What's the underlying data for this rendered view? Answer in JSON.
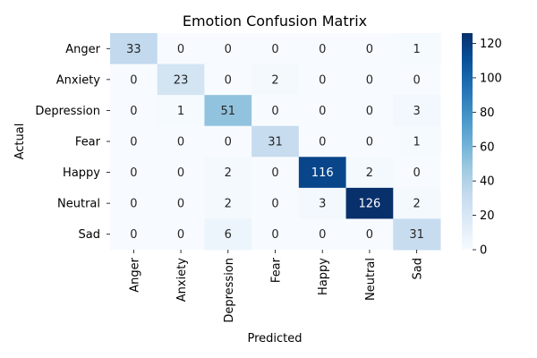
{
  "chart_data": {
    "type": "heatmap",
    "title": "Emotion Confusion Matrix",
    "xlabel": "Predicted",
    "ylabel": "Actual",
    "x_categories": [
      "Anger",
      "Anxiety",
      "Depression",
      "Fear",
      "Happy",
      "Neutral",
      "Sad"
    ],
    "y_categories": [
      "Anger",
      "Anxiety",
      "Depression",
      "Fear",
      "Happy",
      "Neutral",
      "Sad"
    ],
    "values": [
      [
        33,
        0,
        0,
        0,
        0,
        0,
        1
      ],
      [
        0,
        23,
        0,
        2,
        0,
        0,
        0
      ],
      [
        0,
        1,
        51,
        0,
        0,
        0,
        3
      ],
      [
        0,
        0,
        0,
        31,
        0,
        0,
        1
      ],
      [
        0,
        0,
        2,
        0,
        116,
        2,
        0
      ],
      [
        0,
        0,
        2,
        0,
        3,
        126,
        2
      ],
      [
        0,
        0,
        6,
        0,
        0,
        0,
        31
      ]
    ],
    "colormap": "Blues",
    "colorbar": {
      "range": [
        0,
        126
      ],
      "ticks": [
        0,
        20,
        40,
        60,
        80,
        100,
        120
      ]
    },
    "annotations": true,
    "grid": false
  }
}
